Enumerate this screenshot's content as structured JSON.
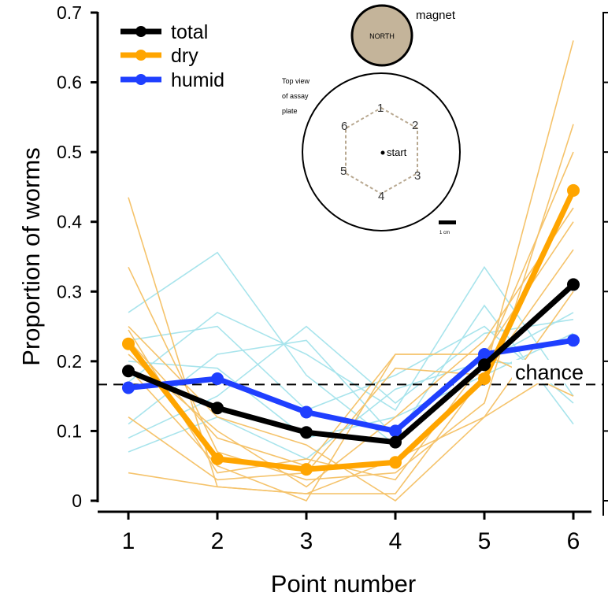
{
  "chart_data": {
    "type": "line",
    "ylabel": "Proportion of worms",
    "xlabel": "Point number",
    "x": [
      1,
      2,
      3,
      4,
      5,
      6
    ],
    "xlim": [
      0.6,
      6.25
    ],
    "ylim": [
      0,
      0.7
    ],
    "yticks": [
      0,
      0.1,
      0.2,
      0.3,
      0.4,
      0.5,
      0.6,
      0.7
    ],
    "ytick_labels": [
      "0",
      "0.1",
      "0.2",
      "0.3",
      "0.4",
      "0.5",
      "0.6",
      "0.7"
    ],
    "xtick_labels": [
      "1",
      "2",
      "3",
      "4",
      "5",
      "6"
    ],
    "legend_position": "top-left",
    "series": [
      {
        "name": "total",
        "color": "#000000",
        "values": [
          0.186,
          0.133,
          0.098,
          0.084,
          0.195,
          0.31
        ]
      },
      {
        "name": "dry",
        "color": "#FFA500",
        "values": [
          0.225,
          0.06,
          0.045,
          0.055,
          0.175,
          0.445
        ]
      },
      {
        "name": "humid",
        "color": "#1F3FFF",
        "values": [
          0.162,
          0.175,
          0.127,
          0.1,
          0.21,
          0.23
        ]
      }
    ],
    "individual_trials": {
      "dry_color": "#F5C36B",
      "humid_color": "#A8E4EC",
      "dry": [
        [
          0.435,
          0.02,
          0.01,
          0.01,
          0.18,
          0.66
        ],
        [
          0.335,
          0.07,
          0.03,
          0.04,
          0.14,
          0.54
        ],
        [
          0.245,
          0.04,
          0.06,
          0.03,
          0.2,
          0.5
        ],
        [
          0.21,
          0.1,
          0.02,
          0.12,
          0.23,
          0.42
        ],
        [
          0.19,
          0.05,
          0.0,
          0.21,
          0.21,
          0.4
        ],
        [
          0.12,
          0.03,
          0.04,
          0.19,
          0.18,
          0.36
        ],
        [
          0.04,
          0.02,
          0.01,
          0.06,
          0.12,
          0.3
        ],
        [
          0.25,
          0.12,
          0.08,
          0.0,
          0.12,
          0.2
        ],
        [
          0.23,
          0.09,
          0.05,
          0.21,
          0.21,
          0.15
        ]
      ],
      "humid": [
        [
          0.27,
          0.356,
          0.18,
          0.08,
          0.2,
          0.19
        ],
        [
          0.17,
          0.27,
          0.21,
          0.13,
          0.335,
          0.15
        ],
        [
          0.11,
          0.21,
          0.23,
          0.09,
          0.28,
          0.11
        ],
        [
          0.09,
          0.15,
          0.25,
          0.14,
          0.24,
          0.26
        ],
        [
          0.07,
          0.12,
          0.06,
          0.16,
          0.2,
          0.27
        ],
        [
          0.23,
          0.25,
          0.13,
          0.18,
          0.25,
          0.14
        ],
        [
          0.2,
          0.19,
          0.09,
          0.12,
          0.18,
          0.24
        ]
      ]
    },
    "chance": {
      "label": "chance",
      "value": 0.1667
    },
    "inset": {
      "magnet_label": "magnet",
      "north_label": "NORTH",
      "plate_caption": [
        "Top view",
        "of assay",
        "plate"
      ],
      "start_label": "start",
      "point_labels": [
        "1",
        "2",
        "3",
        "4",
        "5",
        "6"
      ],
      "scale_label": "1 cm",
      "magnet_fill": "#C4B49A"
    }
  }
}
